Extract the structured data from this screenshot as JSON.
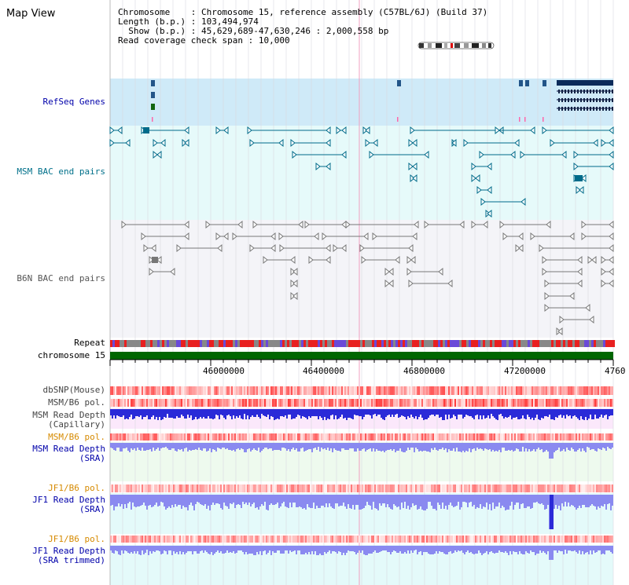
{
  "view_title": "Map View",
  "info": {
    "chromosome_label": "Chromosome",
    "chromosome_value": "Chromosome 15, reference assembly (C57BL/6J) (Build 37)",
    "length_label": "Length (b.p.)",
    "length_value": "103,494,974",
    "show_label": "Show (b.p.)",
    "show_value": "45,629,689-47,630,246 : 2,000,558 bp",
    "coverage_label": "Read coverage check span",
    "coverage_value": "10,000"
  },
  "tracks": {
    "refseq": "RefSeq Genes",
    "msm_bac": "MSM BAC end pairs",
    "b6n_bac": "B6N BAC end pairs",
    "repeat": "Repeat",
    "chromosome": "chromosome 15",
    "dbsnp": "dbSNP(Mouse)",
    "msm_b6_pol_1": "MSM/B6 pol.",
    "msm_read_depth_cap_1": "MSM Read Depth",
    "msm_read_depth_cap_2": "(Capillary)",
    "msm_b6_pol_2": "MSM/B6 pol.",
    "msm_read_depth_sra_1": "MSM Read Depth",
    "msm_read_depth_sra_2": "(SRA)",
    "jf1_b6_pol_1": "JF1/B6 pol.",
    "jf1_read_depth_sra_1": "JF1 Read Depth",
    "jf1_read_depth_sra_2": "(SRA)",
    "jf1_b6_pol_2": "JF1/B6 pol.",
    "jf1_read_depth_trim_1": "JF1 Read Depth",
    "jf1_read_depth_trim_2": "(SRA trimmed)"
  },
  "axis": {
    "ticks": [
      "46000000",
      "46400000",
      "46800000",
      "47200000",
      "4760"
    ]
  },
  "colors": {
    "refseq_bg": "#cfeaf8",
    "msm_bg": "#e6fafa",
    "b6n_bg": "#f4f4f8",
    "chromosome_bar": "#006600",
    "msm_feature": "#006b8a",
    "b6n_feature": "#777777",
    "depth_blue": "#2a2ad8",
    "depth_light_blue": "#8a8af0",
    "label_blue": "#0000aa",
    "label_teal": "#00708a",
    "label_orange": "#d68a00"
  }
}
